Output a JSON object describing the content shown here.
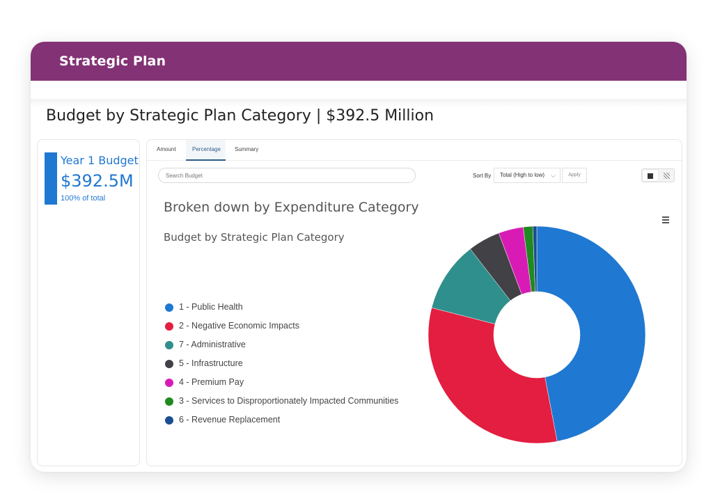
{
  "header": {
    "title": "Strategic Plan"
  },
  "page": {
    "title": "Budget by Strategic Plan Category | $392.5 Million"
  },
  "summary": {
    "label": "Year 1 Budget",
    "value": "$392.5M",
    "sub": "100% of total",
    "accent": "#1f78d1"
  },
  "tabs": [
    {
      "label": "Amount",
      "active": false
    },
    {
      "label": "Percentage",
      "active": true
    },
    {
      "label": "Summary",
      "active": false
    }
  ],
  "search": {
    "placeholder": "Search Budget"
  },
  "sort": {
    "label": "Sort By",
    "value": "Total (High to low)",
    "apply": "Apply"
  },
  "view_toggle": {
    "icons": [
      "solid-square-icon",
      "hatched-square-icon"
    ],
    "selected": 0
  },
  "chart_heading": "Broken down by Expenditure Category",
  "chart_data": {
    "type": "pie",
    "variant": "donut",
    "title": "Budget by Strategic Plan Category",
    "legend_position": "left",
    "slices": [
      {
        "label": "1 - Public Health",
        "value": 47.0,
        "color": "#1f78d1"
      },
      {
        "label": "2 - Negative Economic Impacts",
        "value": 32.0,
        "color": "#e31e40"
      },
      {
        "label": "7 - Administrative",
        "value": 10.5,
        "color": "#2f8f8c"
      },
      {
        "label": "5 - Infrastructure",
        "value": 4.8,
        "color": "#414146"
      },
      {
        "label": "4 - Premium Pay",
        "value": 3.7,
        "color": "#d91bb5"
      },
      {
        "label": "3 - Services to Disproportionately Impacted Communities",
        "value": 1.4,
        "color": "#1f8a1f"
      },
      {
        "label": "6 - Revenue Replacement",
        "value": 0.6,
        "color": "#1a4f8f"
      }
    ]
  }
}
